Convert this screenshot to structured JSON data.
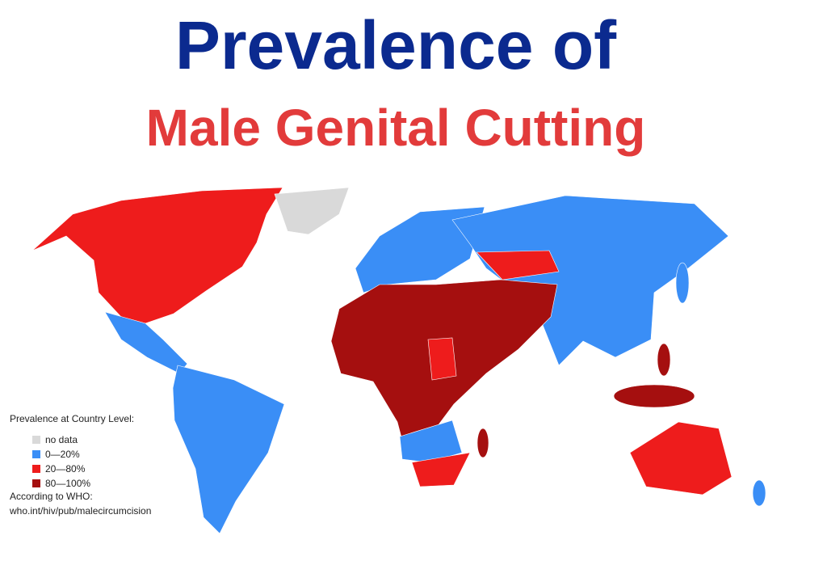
{
  "title_line1": "Prevalence of",
  "title_line2": "Male Genital Cutting",
  "legend": {
    "title": "Prevalence at Country Level:",
    "items": [
      {
        "label": "no data",
        "color": "#d9d9d9"
      },
      {
        "label": "0—20%",
        "color": "#3a8ef6"
      },
      {
        "label": "20—80%",
        "color": "#ee1c1c"
      },
      {
        "label": "80—100%",
        "color": "#a50f0f"
      }
    ]
  },
  "source": {
    "line1": "According to WHO:",
    "line2": "who.int/hiv/pub/malecircumcision"
  }
}
